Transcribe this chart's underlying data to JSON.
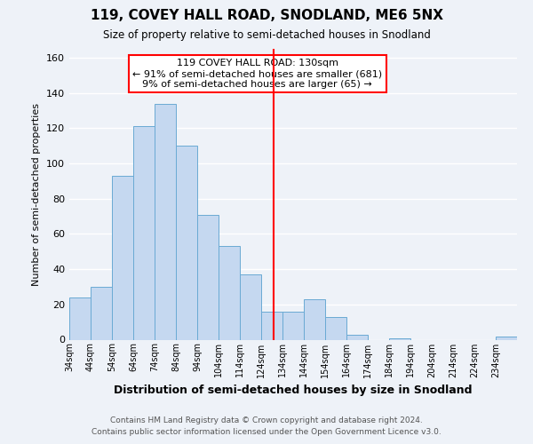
{
  "title": "119, COVEY HALL ROAD, SNODLAND, ME6 5NX",
  "subtitle": "Size of property relative to semi-detached houses in Snodland",
  "xlabel": "Distribution of semi-detached houses by size in Snodland",
  "ylabel": "Number of semi-detached properties",
  "bin_labels": [
    "34sqm",
    "44sqm",
    "54sqm",
    "64sqm",
    "74sqm",
    "84sqm",
    "94sqm",
    "104sqm",
    "114sqm",
    "124sqm",
    "134sqm",
    "144sqm",
    "154sqm",
    "164sqm",
    "174sqm",
    "184sqm",
    "194sqm",
    "204sqm",
    "214sqm",
    "224sqm",
    "234sqm"
  ],
  "bin_edges": [
    34,
    44,
    54,
    64,
    74,
    84,
    94,
    104,
    114,
    124,
    134,
    144,
    154,
    164,
    174,
    184,
    194,
    204,
    214,
    224,
    234,
    244
  ],
  "counts": [
    24,
    30,
    93,
    121,
    134,
    110,
    71,
    53,
    37,
    16,
    16,
    23,
    13,
    3,
    0,
    1,
    0,
    0,
    0,
    0,
    2
  ],
  "bar_color": "#c5d8f0",
  "bar_edge_color": "#6aaad4",
  "vline_x": 130,
  "vline_color": "red",
  "annotation_title": "119 COVEY HALL ROAD: 130sqm",
  "annotation_line1": "← 91% of semi-detached houses are smaller (681)",
  "annotation_line2": "9% of semi-detached houses are larger (65) →",
  "annotation_box_color": "white",
  "annotation_box_edge": "red",
  "ylim": [
    0,
    165
  ],
  "yticks": [
    0,
    20,
    40,
    60,
    80,
    100,
    120,
    140,
    160
  ],
  "footer_line1": "Contains HM Land Registry data © Crown copyright and database right 2024.",
  "footer_line2": "Contains public sector information licensed under the Open Government Licence v3.0.",
  "background_color": "#eef2f8",
  "grid_color": "white"
}
